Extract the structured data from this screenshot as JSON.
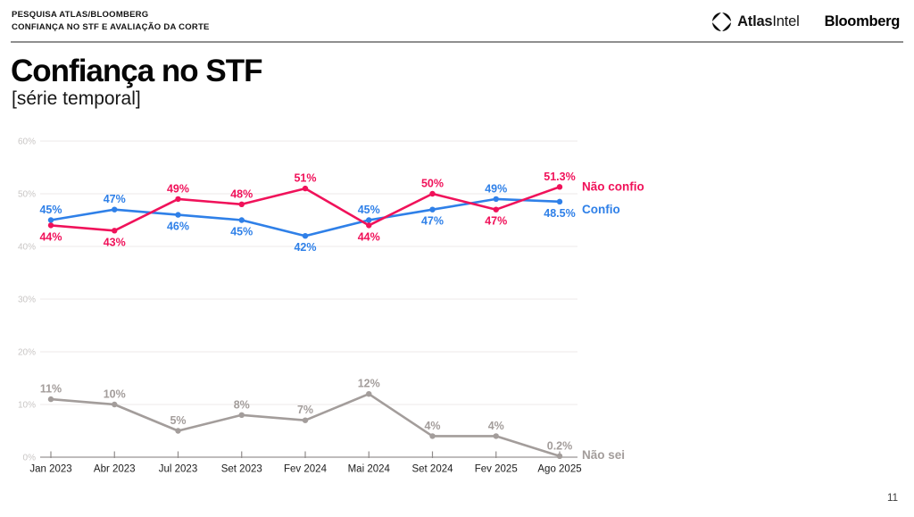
{
  "header": {
    "kicker_line1": "PESQUISA ATLAS/BLOOMBERG",
    "kicker_line2": "CONFIANÇA NO STF E AVALIAÇÃO DA CORTE",
    "brand_atlas_bold": "Atlas",
    "brand_atlas_light": "Intel",
    "brand_bloomberg": "Bloomberg"
  },
  "title": "Confiança no STF",
  "subtitle": "[série temporal]",
  "page_number": "11",
  "chart_data": {
    "type": "line",
    "categories": [
      "Jan 2023",
      "Abr 2023",
      "Jul 2023",
      "Set 2023",
      "Fev 2024",
      "Mai 2024",
      "Set 2024",
      "Fev 2025",
      "Ago 2025"
    ],
    "series": [
      {
        "name": "Não confio",
        "color": "#F0125A",
        "values": [
          44,
          43,
          49,
          48,
          51,
          44,
          50,
          47,
          51.3
        ],
        "labels": [
          "44%",
          "43%",
          "49%",
          "48%",
          "51%",
          "44%",
          "50%",
          "47%",
          "51.3%"
        ],
        "label_pos": [
          "below",
          "below",
          "above",
          "above",
          "above",
          "below",
          "above",
          "below",
          "above"
        ]
      },
      {
        "name": "Confio",
        "color": "#2F80E8",
        "values": [
          45,
          47,
          46,
          45,
          42,
          45,
          47,
          49,
          48.5
        ],
        "labels": [
          "45%",
          "47%",
          "46%",
          "45%",
          "42%",
          "45%",
          "47%",
          "49%",
          "48.5%"
        ],
        "label_pos": [
          "above",
          "above",
          "below",
          "below",
          "below",
          "above",
          "below",
          "above",
          "below"
        ]
      },
      {
        "name": "Não sei",
        "color": "#A39D9B",
        "values": [
          11,
          10,
          5,
          8,
          7,
          12,
          4,
          4,
          0.2
        ],
        "labels": [
          "11%",
          "10%",
          "5%",
          "8%",
          "7%",
          "12%",
          "4%",
          "4%",
          "0.2%"
        ],
        "label_pos": [
          "above",
          "above",
          "above",
          "above",
          "above",
          "above",
          "above",
          "above",
          "above"
        ]
      }
    ],
    "y_ticks": [
      "0%",
      "10%",
      "20%",
      "30%",
      "40%",
      "50%",
      "60%"
    ],
    "ylim": [
      0,
      60
    ],
    "grid": true,
    "legend_position": "right"
  }
}
